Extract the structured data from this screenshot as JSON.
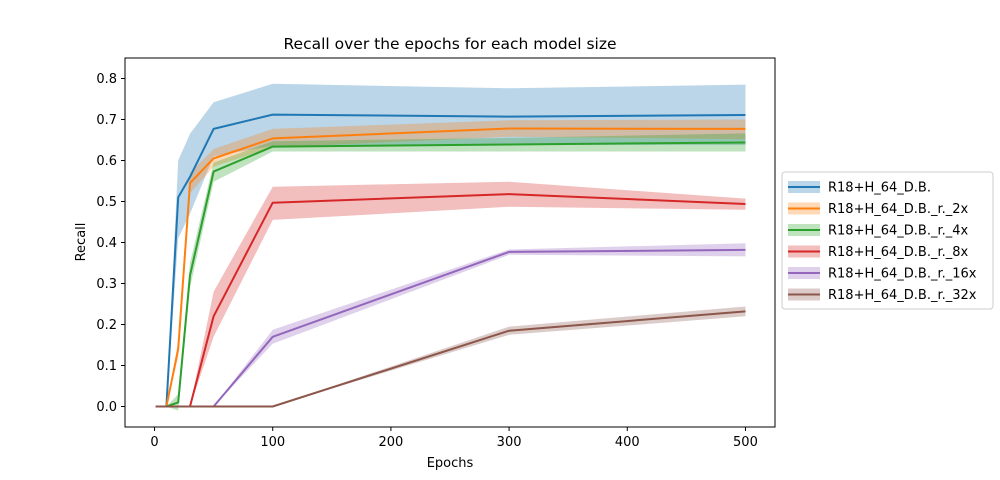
{
  "chart_data": {
    "type": "line",
    "title": "Recall over the epochs for each model size",
    "xlabel": "Epochs",
    "ylabel": "Recall",
    "xlim": [
      -25,
      525
    ],
    "ylim": [
      -0.05,
      0.85
    ],
    "xticks": [
      0,
      100,
      200,
      300,
      400,
      500
    ],
    "yticks": [
      0.0,
      0.1,
      0.2,
      0.3,
      0.4,
      0.5,
      0.6,
      0.7,
      0.8
    ],
    "x": [
      1,
      10,
      20,
      30,
      50,
      100,
      300,
      500
    ],
    "grid": false,
    "legend": "outside-right",
    "series": [
      {
        "name": "R18+H_64_D.B.",
        "color": "#1f77b4",
        "values": [
          0.0,
          0.0,
          0.51,
          0.56,
          0.677,
          0.712,
          0.707,
          0.711
        ],
        "lower": [
          0.0,
          0.0,
          0.41,
          0.47,
          0.61,
          0.636,
          0.638,
          0.638
        ],
        "upper": [
          0.0,
          0.0,
          0.6,
          0.665,
          0.742,
          0.787,
          0.776,
          0.785
        ]
      },
      {
        "name": "R18+H_64_D.B._r._2x",
        "color": "#ff7f0e",
        "values": [
          0.0,
          0.0,
          0.14,
          0.545,
          0.605,
          0.654,
          0.678,
          0.677
        ],
        "lower": [
          0.0,
          0.0,
          0.12,
          0.52,
          0.585,
          0.632,
          0.658,
          0.652
        ],
        "upper": [
          0.0,
          0.0,
          0.16,
          0.57,
          0.628,
          0.677,
          0.698,
          0.7
        ]
      },
      {
        "name": "R18+H_64_D.B._r._4x",
        "color": "#2ca02c",
        "values": [
          0.0,
          0.0,
          0.01,
          0.32,
          0.573,
          0.634,
          0.639,
          0.644
        ],
        "lower": [
          0.0,
          0.0,
          -0.01,
          0.29,
          0.548,
          0.622,
          0.622,
          0.622
        ],
        "upper": [
          0.0,
          0.0,
          0.03,
          0.35,
          0.595,
          0.647,
          0.655,
          0.666
        ]
      },
      {
        "name": "R18+H_64_D.B._r._8x",
        "color": "#d62728",
        "values": [
          0.0,
          0.0,
          0.0,
          0.0,
          0.22,
          0.497,
          0.518,
          0.494
        ],
        "lower": [
          0.0,
          0.0,
          0.0,
          0.0,
          0.17,
          0.455,
          0.487,
          0.48
        ],
        "upper": [
          0.0,
          0.0,
          0.0,
          0.0,
          0.28,
          0.536,
          0.548,
          0.507
        ]
      },
      {
        "name": "R18+H_64_D.B._r._16x",
        "color": "#9467bd",
        "values": [
          0.0,
          0.0,
          0.0,
          0.0,
          0.0,
          0.17,
          0.377,
          0.382
        ],
        "lower": [
          0.0,
          0.0,
          0.0,
          0.0,
          0.0,
          0.153,
          0.37,
          0.366
        ],
        "upper": [
          0.0,
          0.0,
          0.0,
          0.0,
          0.0,
          0.187,
          0.383,
          0.398
        ]
      },
      {
        "name": "R18+H_64_D.B._r._32x",
        "color": "#8c564b",
        "values": [
          0.0,
          0.0,
          0.0,
          0.0,
          0.0,
          0.0,
          0.185,
          0.232
        ],
        "lower": [
          0.0,
          0.0,
          0.0,
          0.0,
          0.0,
          0.0,
          0.175,
          0.22
        ],
        "upper": [
          0.0,
          0.0,
          0.0,
          0.0,
          0.0,
          0.0,
          0.195,
          0.244
        ]
      }
    ]
  }
}
